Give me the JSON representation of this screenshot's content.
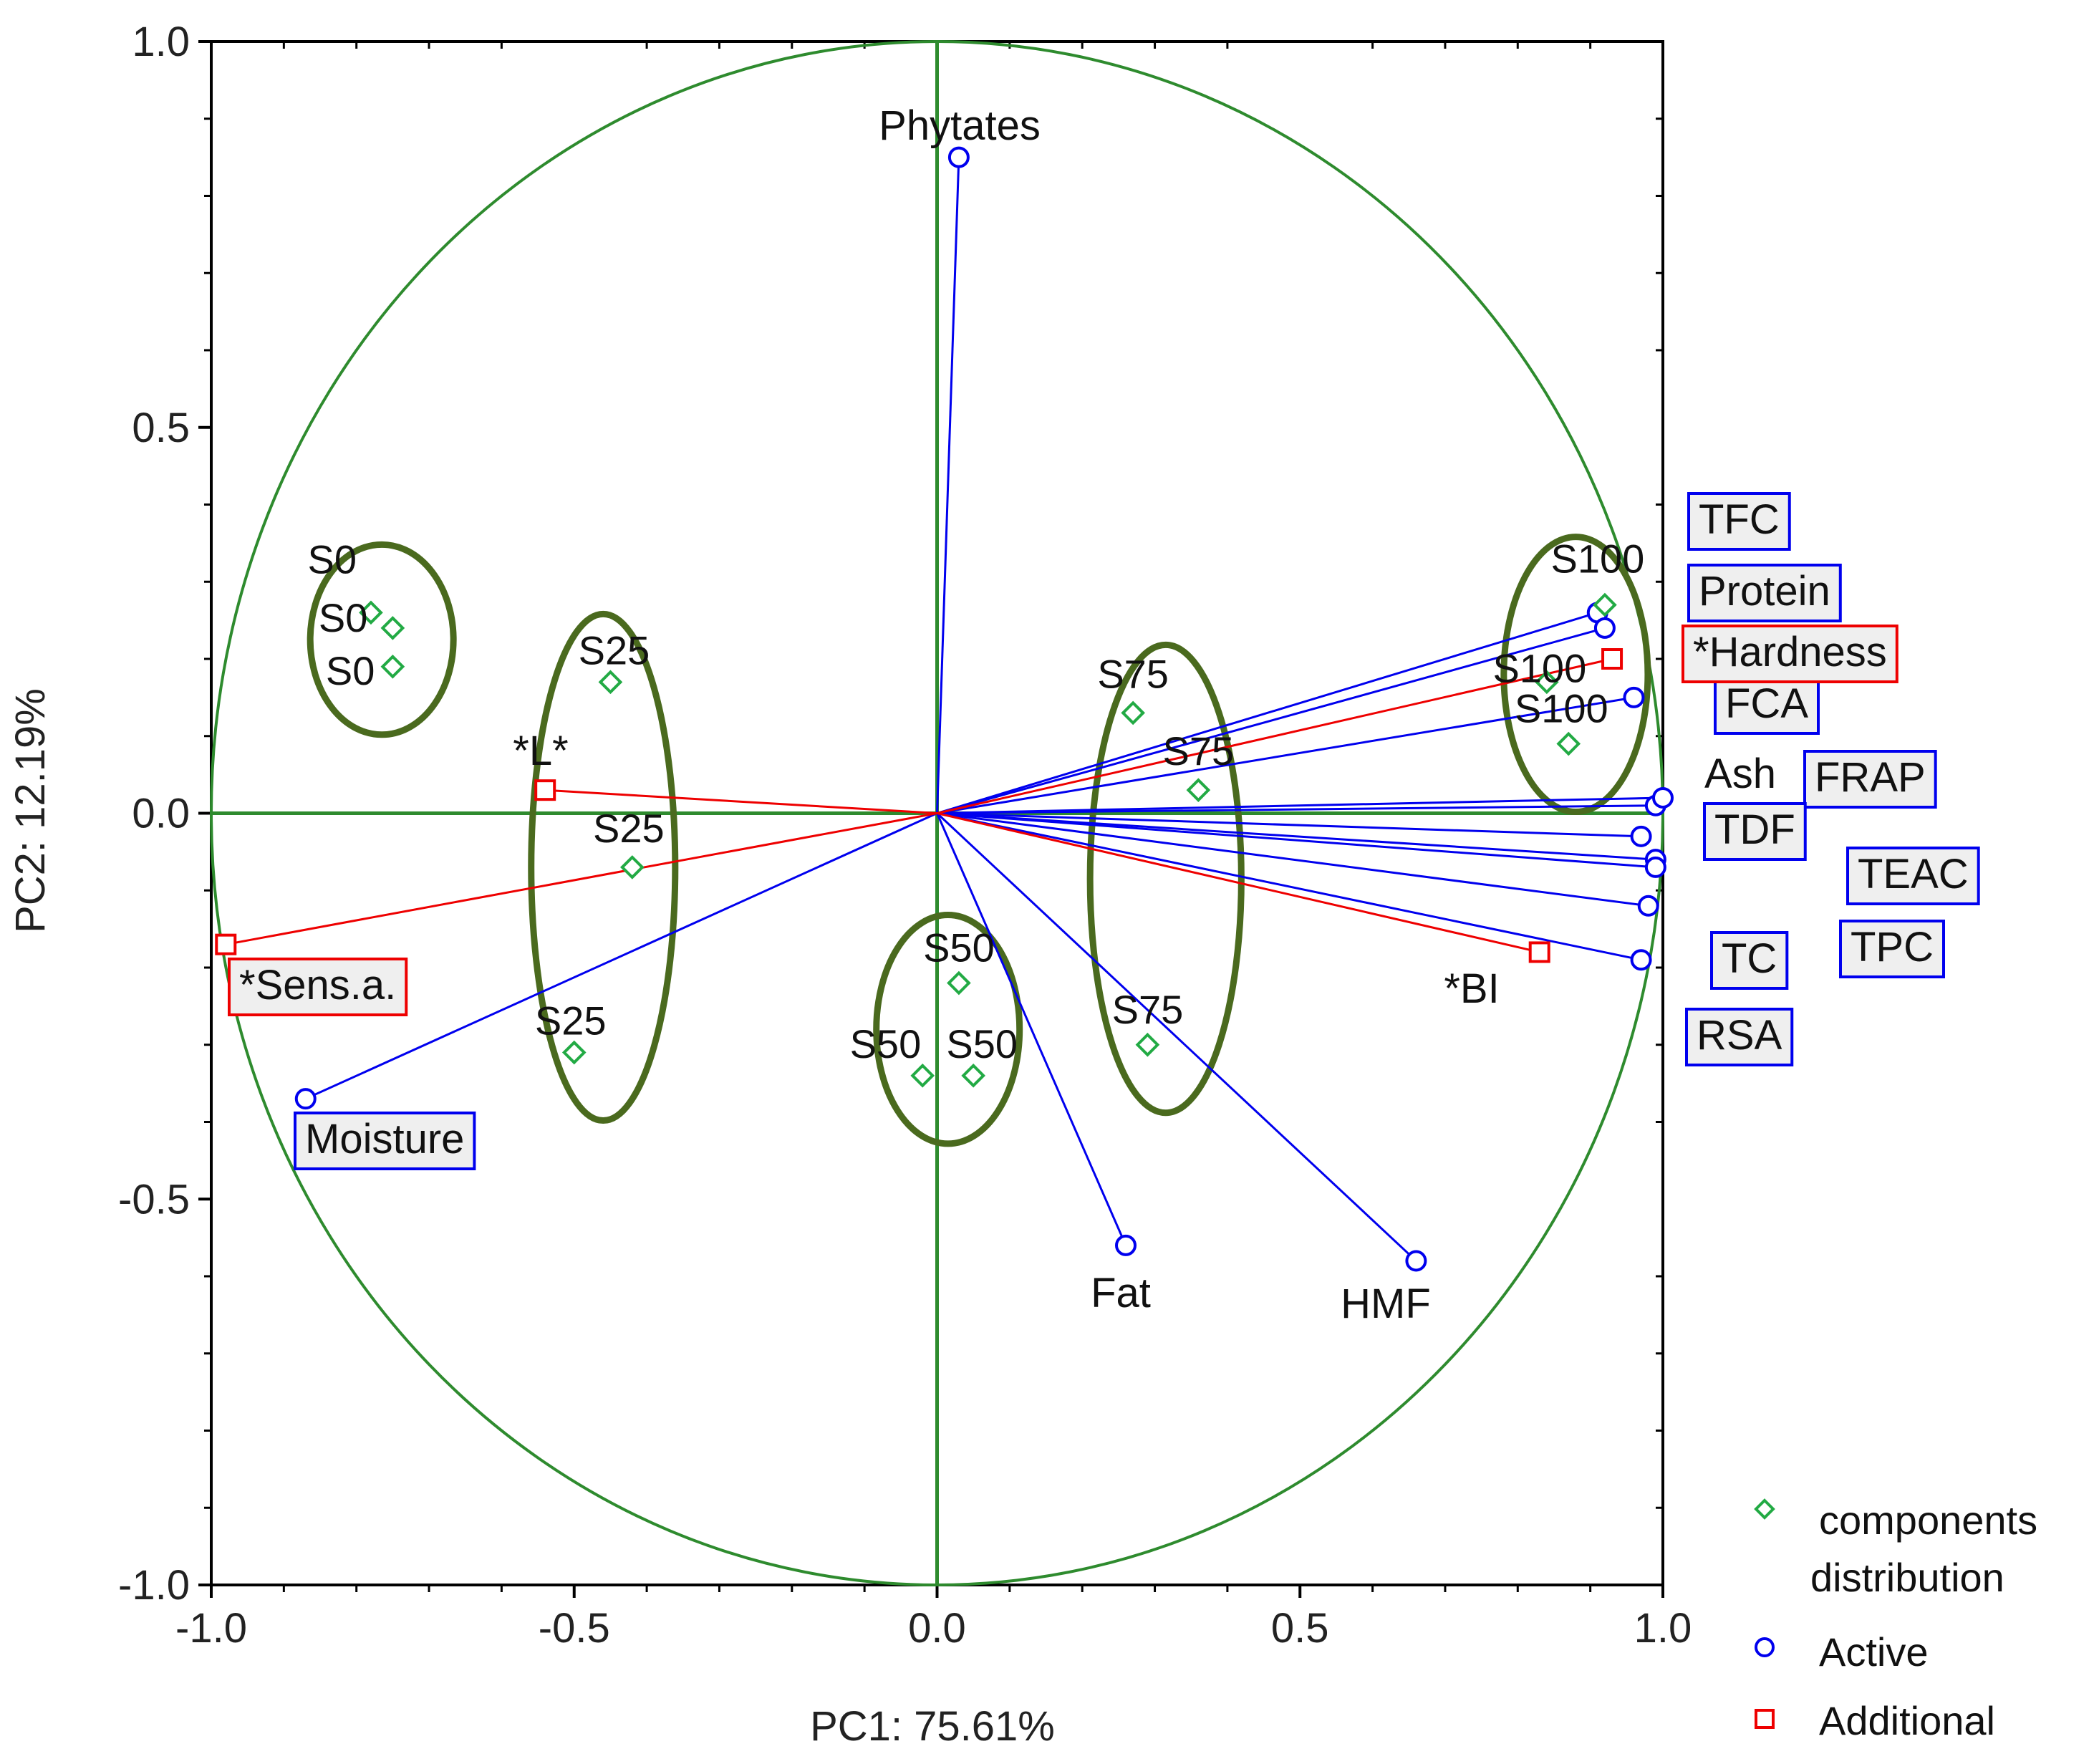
{
  "chart_data": {
    "type": "scatter",
    "subtype": "pca-biplot",
    "xlabel": "PC1: 75.61%",
    "ylabel": "PC2: 12.19%",
    "xlim": [
      -1.0,
      1.0
    ],
    "ylim": [
      -1.0,
      1.0
    ],
    "xticks": [
      "-1.0",
      "-0.5",
      "0.0",
      "0.5",
      "1.0"
    ],
    "yticks": [
      "1.0",
      "0.5",
      "0.0",
      "-0.5",
      "-1.0"
    ],
    "colors": {
      "active": "#0000ee",
      "additional": "#ee0000",
      "components": "#22aa44",
      "circle": "#2e8b2e",
      "ellipse": "#4a6a1e"
    },
    "legend": [
      {
        "key": "components",
        "text": "components distribution",
        "lines": [
          "components",
          "distribution"
        ]
      },
      {
        "key": "active",
        "text": "Active"
      },
      {
        "key": "additional",
        "text": "Additional"
      }
    ],
    "active_variables": [
      {
        "name": "Phytates",
        "x": 0.03,
        "y": 0.85,
        "boxed": false
      },
      {
        "name": "TFC",
        "x": 0.91,
        "y": 0.26,
        "boxed": true
      },
      {
        "name": "Protein",
        "x": 0.92,
        "y": 0.24,
        "boxed": true
      },
      {
        "name": "FCA",
        "x": 0.96,
        "y": 0.15,
        "boxed": true
      },
      {
        "name": "Ash",
        "x": 0.99,
        "y": 0.01,
        "boxed": false
      },
      {
        "name": "FRAP",
        "x": 1.0,
        "y": 0.02,
        "boxed": true
      },
      {
        "name": "TDF",
        "x": 0.97,
        "y": -0.03,
        "boxed": true
      },
      {
        "name": "TEAC",
        "x": 0.99,
        "y": -0.06,
        "boxed": true
      },
      {
        "name": "TPC",
        "x": 0.99,
        "y": -0.07,
        "boxed": true
      },
      {
        "name": "TC",
        "x": 0.98,
        "y": -0.12,
        "boxed": true
      },
      {
        "name": "RSA",
        "x": 0.97,
        "y": -0.19,
        "boxed": true
      },
      {
        "name": "Moisture",
        "x": -0.87,
        "y": -0.37,
        "boxed": true
      },
      {
        "name": "Fat",
        "x": 0.26,
        "y": -0.56,
        "boxed": false
      },
      {
        "name": "HMF",
        "x": 0.66,
        "y": -0.58,
        "boxed": false
      }
    ],
    "additional_variables": [
      {
        "name": "*Hardness",
        "x": 0.93,
        "y": 0.2,
        "boxed": true
      },
      {
        "name": "*L*",
        "x": -0.54,
        "y": 0.03,
        "boxed": false
      },
      {
        "name": "*Sens.a.",
        "x": -0.98,
        "y": -0.17,
        "boxed": true
      },
      {
        "name": "*BI",
        "x": 0.83,
        "y": -0.18,
        "boxed": false
      }
    ],
    "samples": [
      {
        "name": "S0",
        "x": -0.78,
        "y": 0.26
      },
      {
        "name": "S0",
        "x": -0.75,
        "y": 0.24
      },
      {
        "name": "S0",
        "x": -0.75,
        "y": 0.19
      },
      {
        "name": "S25",
        "x": -0.45,
        "y": 0.17
      },
      {
        "name": "S25",
        "x": -0.42,
        "y": -0.07
      },
      {
        "name": "S25",
        "x": -0.5,
        "y": -0.31
      },
      {
        "name": "S50",
        "x": 0.03,
        "y": -0.22
      },
      {
        "name": "S50",
        "x": -0.02,
        "y": -0.34
      },
      {
        "name": "S50",
        "x": 0.05,
        "y": -0.34
      },
      {
        "name": "S75",
        "x": 0.27,
        "y": 0.13
      },
      {
        "name": "S75",
        "x": 0.36,
        "y": 0.03
      },
      {
        "name": "S75",
        "x": 0.29,
        "y": -0.3
      },
      {
        "name": "S100",
        "x": 0.92,
        "y": 0.27
      },
      {
        "name": "S100",
        "x": 0.84,
        "y": 0.17
      },
      {
        "name": "S100",
        "x": 0.87,
        "y": 0.09
      }
    ]
  }
}
